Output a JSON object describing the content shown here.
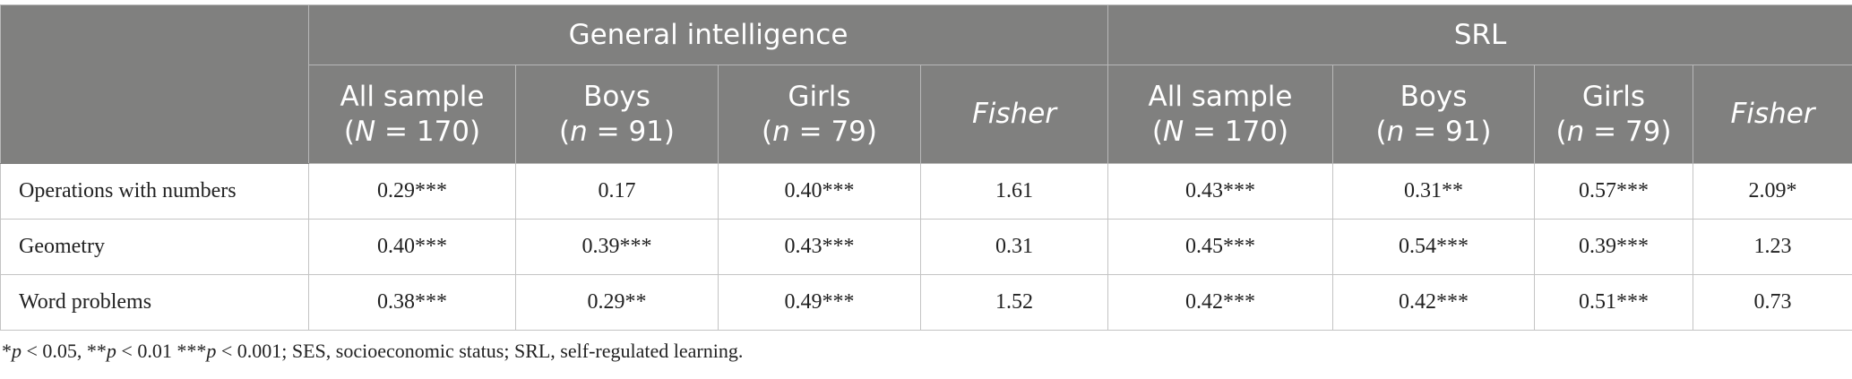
{
  "table": {
    "groups": [
      "General intelligence",
      "SRL"
    ],
    "subheaders": [
      {
        "line1": "All sample",
        "line2": [
          "(",
          "N",
          " = 170)"
        ]
      },
      {
        "line1": "Boys",
        "line2": [
          "(",
          "n",
          " = 91)"
        ]
      },
      {
        "line1": "Girls",
        "line2": [
          "(",
          "n",
          " = 79)"
        ]
      },
      {
        "line1": "Fisher"
      },
      {
        "line1": "All sample",
        "line2": [
          "(",
          "N",
          " = 170)"
        ]
      },
      {
        "line1": "Boys",
        "line2": [
          "(",
          "n",
          " = 91)"
        ]
      },
      {
        "line1": "Girls",
        "line2": [
          "(",
          "n",
          " = 79)"
        ]
      },
      {
        "line1": "Fisher"
      }
    ],
    "rows": [
      [
        "Operations with numbers",
        "0.29***",
        "0.17",
        "0.40***",
        "1.61",
        "0.43***",
        "0.31**",
        "0.57***",
        "2.09*"
      ],
      [
        "Geometry",
        "0.40***",
        "0.39***",
        "0.43***",
        "0.31",
        "0.45***",
        "0.54***",
        "0.39***",
        "1.23"
      ],
      [
        "Word problems",
        "0.38***",
        "0.29**",
        "0.49***",
        "1.52",
        "0.42***",
        "0.42***",
        "0.51***",
        "0.73"
      ]
    ]
  },
  "footnote": [
    "*",
    "p",
    " < 0.05, **",
    "p",
    " < 0.01 ***",
    "p",
    " < 0.001; SES, socioeconomic status; SRL, self-regulated learning."
  ]
}
